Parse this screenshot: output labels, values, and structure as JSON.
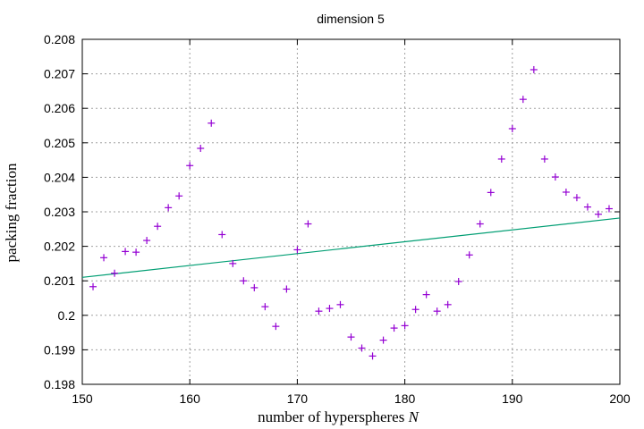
{
  "chart_data": {
    "type": "scatter",
    "title": "dimension 5",
    "xlabel": "number of hyperspheres",
    "xlabel_var": "N",
    "ylabel": "packing fraction",
    "xlim": [
      150,
      200
    ],
    "ylim": [
      0.198,
      0.208
    ],
    "xticks": [
      "150",
      "160",
      "170",
      "180",
      "190",
      "200"
    ],
    "yticks": [
      "0.198",
      "0.199",
      "0.2",
      "0.201",
      "0.202",
      "0.203",
      "0.204",
      "0.205",
      "0.206",
      "0.207",
      "0.208"
    ],
    "grid": true,
    "legend": "none",
    "colors": {
      "points": "#9400d3",
      "fit": "#009e73"
    },
    "series": [
      {
        "kind": "points",
        "marker": "plus",
        "x": [
          151,
          152,
          153,
          154,
          155,
          156,
          157,
          158,
          159,
          160,
          161,
          162,
          163,
          164,
          165,
          166,
          167,
          168,
          169,
          170,
          171,
          172,
          173,
          174,
          175,
          176,
          177,
          178,
          179,
          180,
          181,
          182,
          183,
          184,
          185,
          186,
          187,
          188,
          189,
          190,
          191,
          192,
          193,
          194,
          195,
          196,
          197,
          198,
          199
        ],
        "y": [
          0.20083,
          0.20167,
          0.20122,
          0.20185,
          0.20183,
          0.20217,
          0.20258,
          0.20312,
          0.20346,
          0.20434,
          0.20484,
          0.20557,
          0.20234,
          0.2015,
          0.201,
          0.2008,
          0.20025,
          0.19968,
          0.20076,
          0.2019,
          0.20265,
          0.20012,
          0.2002,
          0.20031,
          0.19937,
          0.19905,
          0.19882,
          0.19928,
          0.19963,
          0.1997,
          0.20017,
          0.2006,
          0.20012,
          0.20031,
          0.20098,
          0.20175,
          0.20265,
          0.20356,
          0.20453,
          0.20541,
          0.20626,
          0.20712,
          0.20453,
          0.20401,
          0.20357,
          0.20341,
          0.20314,
          0.20293,
          0.20309
        ]
      },
      {
        "kind": "line",
        "x": [
          150,
          200
        ],
        "y": [
          0.2011,
          0.20282
        ]
      }
    ]
  }
}
